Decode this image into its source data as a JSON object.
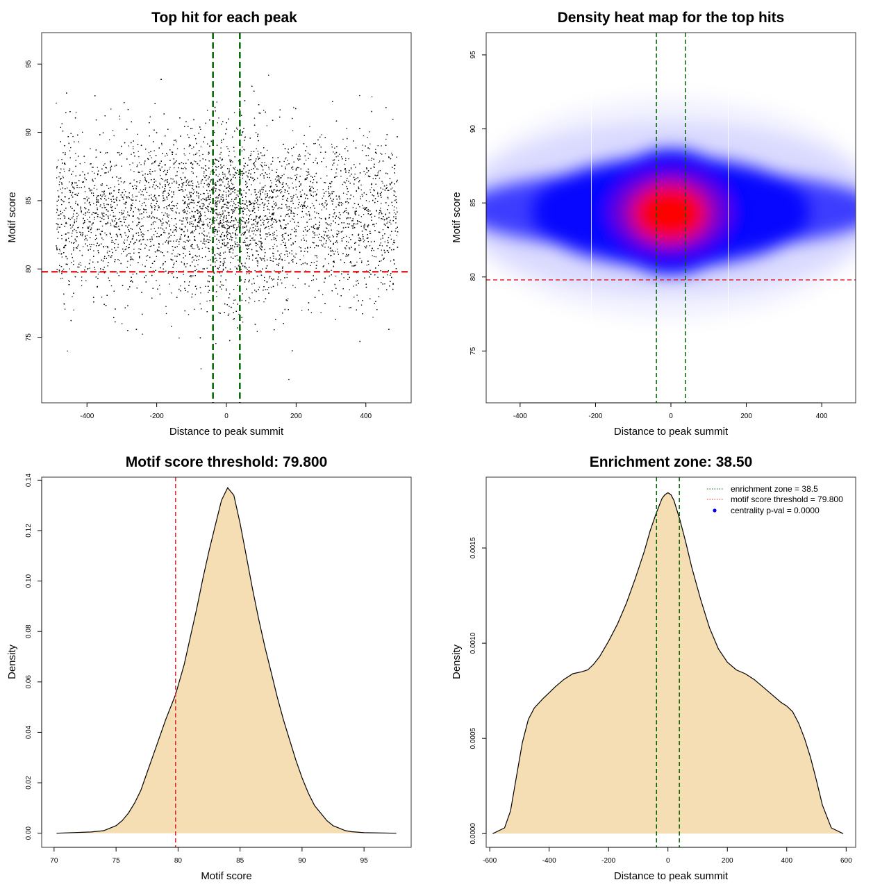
{
  "colors": {
    "threshold": "#e3242b",
    "zone": "#006400",
    "fill": "#f5deb3",
    "heat_low": "#0000ff",
    "heat_high": "#ff0000",
    "legend_dot": "#0000ff",
    "point": "#000000"
  },
  "chart_data": [
    {
      "id": "scatter",
      "type": "scatter",
      "title": "Top hit for each peak",
      "xlabel": "Distance to peak summit",
      "ylabel": "Motif score",
      "xlim": [
        -530,
        530
      ],
      "ylim": [
        70.2,
        97.3
      ],
      "xticks": [
        -400,
        -200,
        0,
        200,
        400
      ],
      "xtick_labels": [
        "-400",
        "-200",
        "0",
        "200",
        "400"
      ],
      "yticks": [
        75,
        80,
        85,
        90,
        95
      ],
      "ytick_labels": [
        "75",
        "80",
        "85",
        "90",
        "95"
      ],
      "n_points": 9000,
      "x_range": [
        -490,
        490
      ],
      "score_mean": 84,
      "score_sd": 3.0,
      "threshold": 79.8,
      "zone": [
        -38.5,
        38.5
      ]
    },
    {
      "id": "heatmap",
      "type": "heatmap",
      "title": "Density heat map for the top hits",
      "xlabel": "Distance to peak summit",
      "ylabel": "Motif score",
      "xlim": [
        -490,
        490
      ],
      "ylim": [
        71.5,
        96.5
      ],
      "xticks": [
        -400,
        -200,
        0,
        200,
        400
      ],
      "xtick_labels": [
        "-400",
        "-200",
        "0",
        "200",
        "400"
      ],
      "yticks": [
        75,
        80,
        85,
        90,
        95
      ],
      "ytick_labels": [
        "75",
        "80",
        "85",
        "90",
        "95"
      ],
      "peak": {
        "x": 0,
        "y": 84
      },
      "threshold": 79.8,
      "zone": [
        -38.5,
        38.5
      ]
    },
    {
      "id": "score_density",
      "type": "area",
      "title": "Motif score threshold: 79.800",
      "xlabel": "Motif score",
      "ylabel": "Density",
      "xlim": [
        69,
        98.8
      ],
      "ylim": [
        -0.0056,
        0.1412
      ],
      "xticks": [
        70,
        75,
        80,
        85,
        90,
        95
      ],
      "xtick_labels": [
        "70",
        "75",
        "80",
        "85",
        "90",
        "95"
      ],
      "yticks": [
        0,
        0.02,
        0.04,
        0.06,
        0.08,
        0.1,
        0.12,
        0.14
      ],
      "ytick_labels": [
        "0.00",
        "0.02",
        "0.04",
        "0.06",
        "0.08",
        "0.10",
        "0.12",
        "0.14"
      ],
      "x": [
        70.2,
        73,
        74,
        75,
        75.5,
        76,
        76.5,
        77,
        77.5,
        78,
        78.5,
        79,
        79.8,
        80.5,
        81,
        81.5,
        82,
        82.5,
        83,
        83.5,
        84,
        84.5,
        85,
        85.5,
        86,
        86.5,
        87,
        87.5,
        88,
        88.5,
        89,
        89.5,
        90,
        90.5,
        91,
        91.5,
        92,
        92.5,
        93,
        93.5,
        94,
        95,
        97.6
      ],
      "y": [
        0,
        0.0005,
        0.001,
        0.003,
        0.005,
        0.008,
        0.012,
        0.017,
        0.024,
        0.031,
        0.038,
        0.045,
        0.055,
        0.067,
        0.078,
        0.089,
        0.101,
        0.112,
        0.122,
        0.132,
        0.137,
        0.134,
        0.123,
        0.11,
        0.097,
        0.085,
        0.074,
        0.064,
        0.054,
        0.045,
        0.037,
        0.029,
        0.022,
        0.016,
        0.011,
        0.008,
        0.005,
        0.003,
        0.002,
        0.001,
        0.0006,
        0.0002,
        0
      ],
      "threshold": 79.8
    },
    {
      "id": "distance_density",
      "type": "area",
      "title": "Enrichment zone: 38.50",
      "xlabel": "Distance to peak summit",
      "ylabel": "Density",
      "xlim": [
        -612,
        632
      ],
      "ylim": [
        -7.2e-05,
        0.001872
      ],
      "xticks": [
        -600,
        -400,
        -200,
        0,
        200,
        400,
        600
      ],
      "xtick_labels": [
        "-600",
        "-400",
        "-200",
        "0",
        "200",
        "400",
        "600"
      ],
      "yticks": [
        0,
        0.0005,
        0.001,
        0.0015
      ],
      "ytick_labels": [
        "0.0000",
        "0.0005",
        "0.0010",
        "0.0015"
      ],
      "x": [
        -590,
        -550,
        -530,
        -510,
        -490,
        -470,
        -450,
        -420,
        -400,
        -380,
        -350,
        -320,
        -290,
        -270,
        -250,
        -230,
        -200,
        -170,
        -140,
        -110,
        -80,
        -60,
        -40,
        -20,
        -10,
        0,
        10,
        20,
        40,
        60,
        80,
        110,
        140,
        170,
        200,
        230,
        260,
        290,
        320,
        350,
        380,
        400,
        420,
        440,
        460,
        480,
        500,
        520,
        550,
        590
      ],
      "y": [
        0,
        3e-05,
        0.00012,
        0.0003,
        0.00048,
        0.0006,
        0.00066,
        0.00071,
        0.00074,
        0.00077,
        0.00081,
        0.00084,
        0.00085,
        0.00086,
        0.00089,
        0.00093,
        0.00101,
        0.0011,
        0.00121,
        0.00134,
        0.00148,
        0.00159,
        0.00168,
        0.00176,
        0.00178,
        0.00179,
        0.00178,
        0.00175,
        0.00165,
        0.00153,
        0.0014,
        0.00123,
        0.00108,
        0.00097,
        0.0009,
        0.00086,
        0.00084,
        0.00081,
        0.00077,
        0.00073,
        0.00069,
        0.00067,
        0.00064,
        0.00058,
        0.0005,
        0.0004,
        0.00028,
        0.00015,
        3e-05,
        0
      ],
      "zone": [
        -38.5,
        38.5
      ],
      "legend": {
        "entries": [
          {
            "label": "enrichment zone = 38.5",
            "kind": "dotted-line",
            "color": "#006400"
          },
          {
            "label": "motif score threshold = 79.800",
            "kind": "dotted-line",
            "color": "#e3242b"
          },
          {
            "label": "centrality p-val = 0.0000",
            "kind": "point",
            "color": "#0000ff"
          }
        ],
        "position": "top-right"
      }
    }
  ]
}
